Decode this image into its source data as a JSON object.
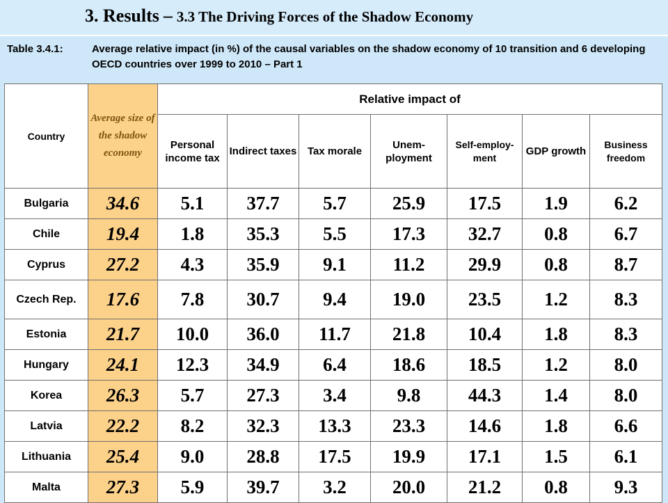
{
  "header": {
    "title_main": "3. Results",
    "title_dash": "–",
    "title_sub": "3.3 The Driving Forces of the Shadow Economy"
  },
  "caption": {
    "label": "Table 3.4.1:",
    "text": "Average relative impact (in %) of the causal variables on the shadow economy of 10 transition and 6 developing OECD countries over 1999 to 2010 – Part 1"
  },
  "table": {
    "country_header": "Country",
    "avg_header": "Average size of the shadow economy",
    "group_header": "Relative impact of",
    "columns": [
      "Personal income tax",
      "Indirect taxes",
      "Tax morale",
      "Unem-ployment",
      "Self-employ-ment",
      "GDP growth",
      "Business freedom"
    ],
    "rows": [
      {
        "country": "Bulgaria",
        "avg": "34.6",
        "values": [
          "5.1",
          "37.7",
          "5.7",
          "25.9",
          "17.5",
          "1.9",
          "6.2"
        ]
      },
      {
        "country": "Chile",
        "avg": "19.4",
        "values": [
          "1.8",
          "35.3",
          "5.5",
          "17.3",
          "32.7",
          "0.8",
          "6.7"
        ]
      },
      {
        "country": "Cyprus",
        "avg": "27.2",
        "values": [
          "4.3",
          "35.9",
          "9.1",
          "11.2",
          "29.9",
          "0.8",
          "8.7"
        ]
      },
      {
        "country": "Czech Rep.",
        "avg": "17.6",
        "values": [
          "7.8",
          "30.7",
          "9.4",
          "19.0",
          "23.5",
          "1.2",
          "8.3"
        ]
      },
      {
        "country": "Estonia",
        "avg": "21.7",
        "values": [
          "10.0",
          "36.0",
          "11.7",
          "21.8",
          "10.4",
          "1.8",
          "8.3"
        ]
      },
      {
        "country": "Hungary",
        "avg": "24.1",
        "values": [
          "12.3",
          "34.9",
          "6.4",
          "18.6",
          "18.5",
          "1.2",
          "8.0"
        ]
      },
      {
        "country": "Korea",
        "avg": "26.3",
        "values": [
          "5.7",
          "27.3",
          "3.4",
          "9.8",
          "44.3",
          "1.4",
          "8.0"
        ]
      },
      {
        "country": "Latvia",
        "avg": "22.2",
        "values": [
          "8.2",
          "32.3",
          "13.3",
          "23.3",
          "14.6",
          "1.8",
          "6.6"
        ]
      },
      {
        "country": "Lithuania",
        "avg": "25.4",
        "values": [
          "9.0",
          "28.8",
          "17.5",
          "19.9",
          "17.1",
          "1.5",
          "6.1"
        ]
      },
      {
        "country": "Malta",
        "avg": "27.3",
        "values": [
          "5.9",
          "39.7",
          "3.2",
          "20.0",
          "21.2",
          "0.8",
          "9.3"
        ]
      }
    ]
  }
}
